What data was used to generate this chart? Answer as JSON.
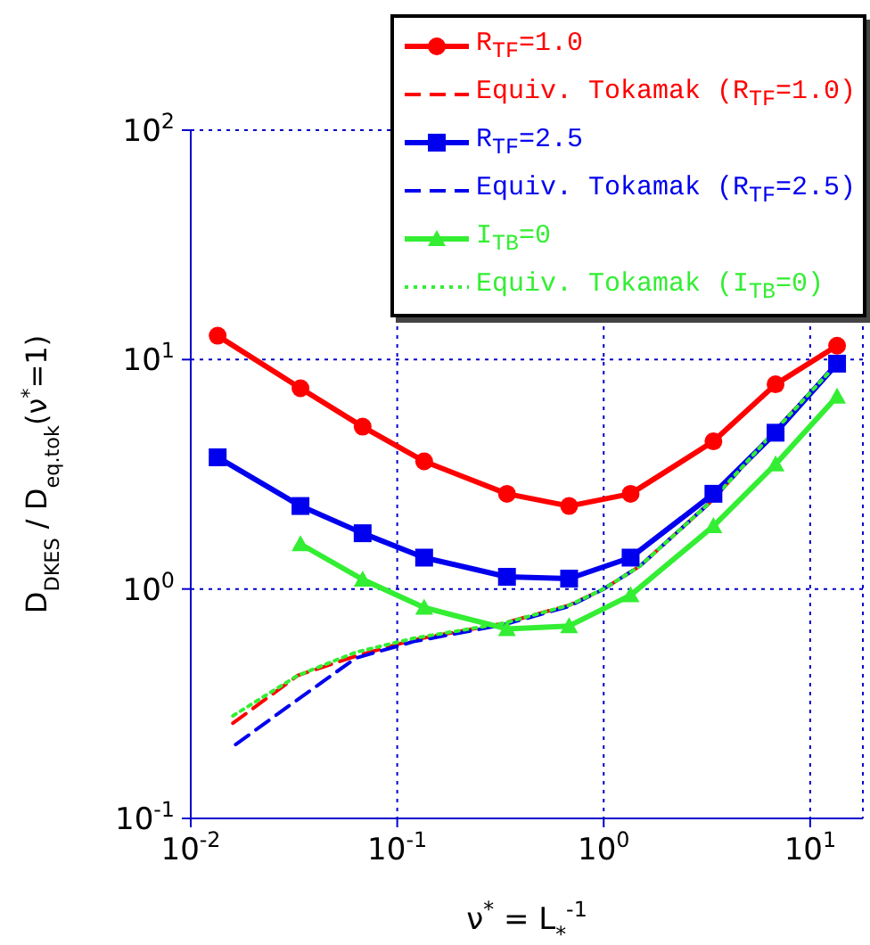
{
  "chart_data": {
    "type": "line",
    "xlabel": "ν$^{*}$ = L$_{*}$$^{-1}$",
    "ylabel": "D$_{DKES}$ / D$_{eq.tok}$(ν$^{*}$=1)",
    "log": "xy",
    "grid": true,
    "legend": "top right",
    "xlim": [
      0.01,
      18
    ],
    "ylim": [
      0.1,
      100
    ],
    "xticks": [
      {
        "value": 0.01,
        "label": "10$^{-2}$"
      },
      {
        "value": 0.1,
        "label": "10$^{-1}$"
      },
      {
        "value": 1,
        "label": "10$^{0}$"
      },
      {
        "value": 10,
        "label": "10$^{1}$"
      }
    ],
    "yticks": [
      {
        "value": 0.1,
        "label": "10$^{-1}$"
      },
      {
        "value": 1,
        "label": "10$^{0}$"
      },
      {
        "value": 10,
        "label": "10$^{1}$"
      },
      {
        "value": 100,
        "label": "10$^{2}$"
      }
    ],
    "series": [
      {
        "name": "R$_{TF}$=1.0",
        "color": "#ff0000",
        "marker": "circle",
        "line_style": "solid",
        "x": [
          0.0135,
          0.034,
          0.068,
          0.135,
          0.34,
          0.68,
          1.35,
          3.4,
          6.8,
          13.5
        ],
        "values": [
          12.7,
          7.5,
          5.1,
          3.6,
          2.6,
          2.3,
          2.6,
          4.4,
          7.8,
          11.5
        ]
      },
      {
        "name": "Equiv. Tokamak (R$_{TF}$=1.0)",
        "color": "#ff0000",
        "marker": "none",
        "line_style": "dashed",
        "x": [
          0.016,
          0.033,
          0.063,
          0.12,
          0.33,
          0.68,
          1.0,
          1.5,
          3.3,
          6.9,
          13.5
        ],
        "values": [
          0.26,
          0.42,
          0.51,
          0.6,
          0.71,
          0.85,
          1.0,
          1.26,
          2.4,
          5.0,
          9.6
        ]
      },
      {
        "name": "R$_{TF}$=2.5",
        "color": "#0000ee",
        "marker": "square",
        "line_style": "solid",
        "x": [
          0.0135,
          0.034,
          0.068,
          0.135,
          0.34,
          0.68,
          1.35,
          3.4,
          6.8,
          13.5
        ],
        "values": [
          3.75,
          2.3,
          1.75,
          1.37,
          1.13,
          1.11,
          1.37,
          2.6,
          4.8,
          9.6
        ]
      },
      {
        "name": "Equiv. Tokamak (R$_{TF}$=2.5)",
        "color": "#0000ee",
        "marker": "none",
        "line_style": "dashed",
        "x": [
          0.0165,
          0.033,
          0.063,
          0.12,
          0.33,
          0.68,
          1.0,
          1.5,
          3.3,
          6.9,
          13.5
        ],
        "values": [
          0.21,
          0.33,
          0.5,
          0.59,
          0.7,
          0.84,
          1.0,
          1.26,
          2.4,
          5.0,
          9.6
        ]
      },
      {
        "name": "I$_{TB}$=0",
        "color": "#33ee33",
        "marker": "triangle",
        "line_style": "solid",
        "x": [
          0.034,
          0.068,
          0.135,
          0.34,
          0.68,
          1.35,
          3.4,
          6.8,
          13.5
        ],
        "values": [
          1.57,
          1.1,
          0.83,
          0.67,
          0.69,
          0.94,
          1.88,
          3.5,
          6.9
        ]
      },
      {
        "name": "Equiv. Tokamak (I$_{TB}$=0)",
        "color": "#33ee33",
        "marker": "none",
        "line_style": "dotted",
        "x": [
          0.016,
          0.033,
          0.063,
          0.12,
          0.33,
          0.68,
          1.0,
          1.5,
          3.3,
          6.9,
          13.5
        ],
        "values": [
          0.28,
          0.42,
          0.53,
          0.61,
          0.71,
          0.85,
          1.0,
          1.26,
          2.4,
          5.0,
          9.6
        ]
      }
    ]
  }
}
